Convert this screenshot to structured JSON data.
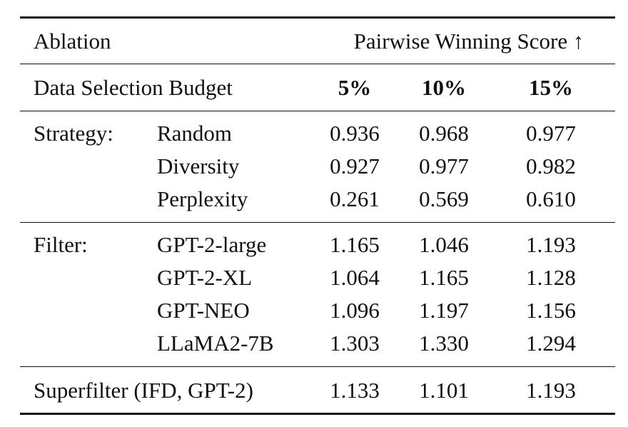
{
  "header": {
    "ablation": "Ablation",
    "score": "Pairwise Winning Score ↑"
  },
  "budget": {
    "label": "Data Selection Budget",
    "cols": [
      "5%",
      "10%",
      "15%"
    ]
  },
  "groups": [
    {
      "label": "Strategy:",
      "rows": [
        {
          "name": "Random",
          "values": [
            "0.936",
            "0.968",
            "0.977"
          ]
        },
        {
          "name": "Diversity",
          "values": [
            "0.927",
            "0.977",
            "0.982"
          ]
        },
        {
          "name": "Perplexity",
          "values": [
            "0.261",
            "0.569",
            "0.610"
          ]
        }
      ]
    },
    {
      "label": "Filter:",
      "rows": [
        {
          "name": "GPT-2-large",
          "values": [
            "1.165",
            "1.046",
            "1.193"
          ]
        },
        {
          "name": "GPT-2-XL",
          "values": [
            "1.064",
            "1.165",
            "1.128"
          ]
        },
        {
          "name": "GPT-NEO",
          "values": [
            "1.096",
            "1.197",
            "1.156"
          ]
        },
        {
          "name": "LLaMA2-7B",
          "values": [
            "1.303",
            "1.330",
            "1.294"
          ]
        }
      ]
    }
  ],
  "superfilter": {
    "label": "Superfilter (IFD, GPT-2)",
    "values": [
      "1.133",
      "1.101",
      "1.193"
    ]
  }
}
